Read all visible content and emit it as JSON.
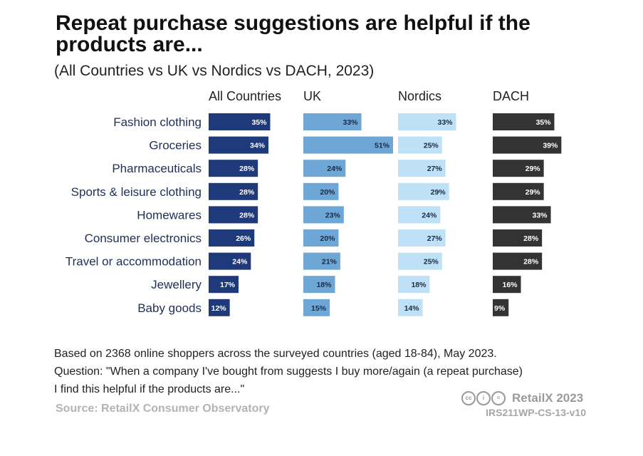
{
  "header": {
    "title": "Repeat purchase suggestions are helpful if the products are...",
    "subtitle": "(All Countries vs UK vs Nordics vs DACH, 2023)"
  },
  "chart_data": {
    "type": "bar",
    "orientation": "horizontal",
    "title": "Repeat purchase suggestions are helpful if the products are...",
    "subtitle": "(All Countries vs UK vs Nordics vs DACH, 2023)",
    "categories": [
      "Fashion clothing",
      "Groceries",
      "Pharmaceuticals",
      "Sports & leisure clothing",
      "Homewares",
      "Consumer electronics",
      "Travel or accommodation",
      "Jewellery",
      "Baby goods"
    ],
    "series": [
      {
        "name": "All Countries",
        "color": "#1f3a7a",
        "label_color": "#ffffff",
        "values": [
          35,
          34,
          28,
          28,
          28,
          26,
          24,
          17,
          12
        ]
      },
      {
        "name": "UK",
        "color": "#6ea6d6",
        "label_color": "#1a2a44",
        "values": [
          33,
          51,
          24,
          20,
          23,
          20,
          21,
          18,
          15
        ]
      },
      {
        "name": "Nordics",
        "color": "#bfe1f7",
        "label_color": "#1a2a44",
        "values": [
          33,
          25,
          27,
          29,
          24,
          27,
          25,
          18,
          14
        ]
      },
      {
        "name": "DACH",
        "color": "#333333",
        "label_color": "#ffffff",
        "values": [
          35,
          39,
          29,
          29,
          33,
          28,
          28,
          16,
          9
        ]
      }
    ],
    "value_suffix": "%",
    "xlim": [
      0,
      51
    ],
    "grid": false,
    "legend": "none"
  },
  "footer": {
    "note_lines": [
      "Based on 2368 online shoppers across the surveyed countries (aged 18-84), May 2023.",
      "Question: \"When a company I've bought from suggests I buy more/again (a repeat purchase)",
      "I find this helpful if the products are...\""
    ],
    "source": "Source: RetailX Consumer Observatory",
    "brand": "RetailX 2023",
    "reference": "IRS211WP-CS-13-v10"
  }
}
